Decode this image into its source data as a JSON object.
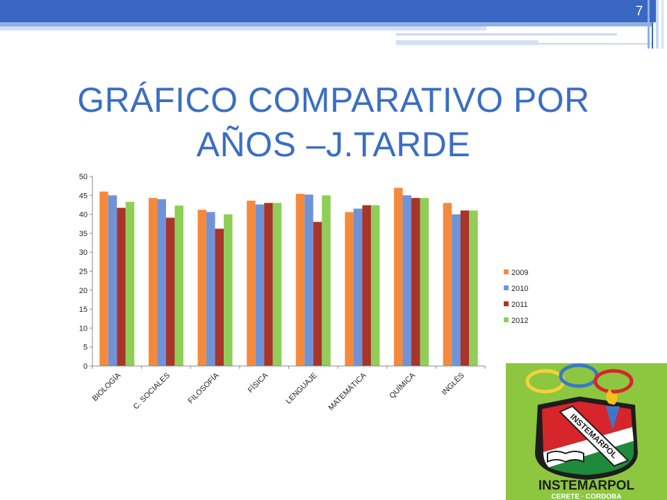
{
  "slide": {
    "number": "7",
    "title_line1": "GRÁFICO COMPARATIVO POR",
    "title_line2": "AÑOS –J.TARDE"
  },
  "colors": {
    "header_blue": "#3a67c4",
    "title_blue": "#3a6ec4",
    "logo_green": "#8dc63f"
  },
  "logo": {
    "banner_text": "INSTEMARPOL",
    "name": "INSTEMARPOL",
    "city": "CERETE · CORDOBA"
  },
  "chart_data": {
    "type": "bar",
    "categories": [
      "BIOLOGÍA",
      "C. SOCIALES",
      "FILOSOFÍA",
      "FÍSICA",
      "LENGUAJE",
      "MATEMÁTICA",
      "QUÍMICA",
      "INGLÉS"
    ],
    "series": [
      {
        "name": "2009",
        "color": "#f58a3c",
        "values": [
          46,
          44.3,
          41.2,
          43.6,
          45.4,
          40.6,
          47,
          43
        ]
      },
      {
        "name": "2010",
        "color": "#6f93d8",
        "values": [
          45,
          44,
          40.6,
          42.6,
          45.2,
          41.5,
          45,
          40
        ]
      },
      {
        "name": "2011",
        "color": "#a8342a",
        "values": [
          41.7,
          39.1,
          36.2,
          43,
          38,
          42.4,
          44.3,
          41
        ]
      },
      {
        "name": "2012",
        "color": "#8fce57",
        "values": [
          43.3,
          42.3,
          40,
          43,
          45,
          42.4,
          44.3,
          41
        ]
      }
    ],
    "ylim": [
      0,
      50
    ],
    "yticks": [
      "0",
      "5",
      "10",
      "15",
      "20",
      "25",
      "30",
      "35",
      "40",
      "45",
      "50"
    ],
    "legend_position": "right",
    "grid": false
  }
}
